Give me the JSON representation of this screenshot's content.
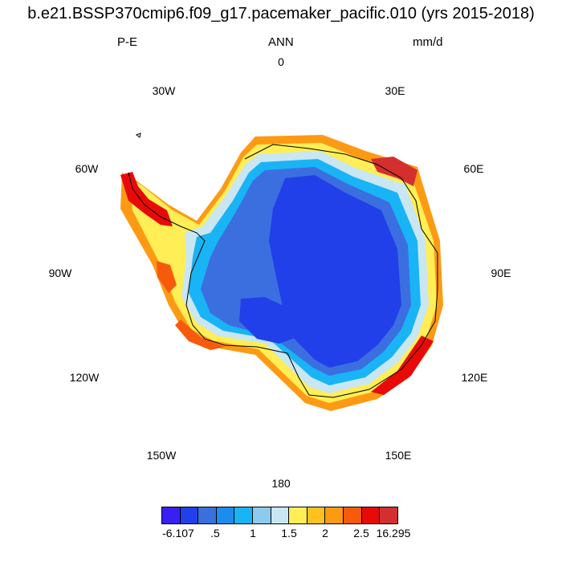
{
  "title": "b.e21.BSSP370cmip6.f09_g17.pacemaker_pacific.010 (yrs 2015-2018)",
  "subtitle_left": "P-E",
  "subtitle_center": "ANN",
  "subtitle_right": "mm/d",
  "longitude_labels": [
    "0",
    "30E",
    "60E",
    "90E",
    "120E",
    "150E",
    "180",
    "150W",
    "120W",
    "90W",
    "60W",
    "30W"
  ],
  "colorbar": {
    "colors": [
      "#3a1ff5",
      "#2140e9",
      "#3b6fe0",
      "#1c8cf0",
      "#19b4f5",
      "#8dcbee",
      "#c9e6f3",
      "#ffee55",
      "#ffc21c",
      "#fd9a14",
      "#f85a0c",
      "#e80a08",
      "#d32f2f"
    ],
    "labels": [
      "-6.107",
      ".5",
      "1",
      "1.5",
      "2",
      "2.5",
      "16.295"
    ]
  }
}
